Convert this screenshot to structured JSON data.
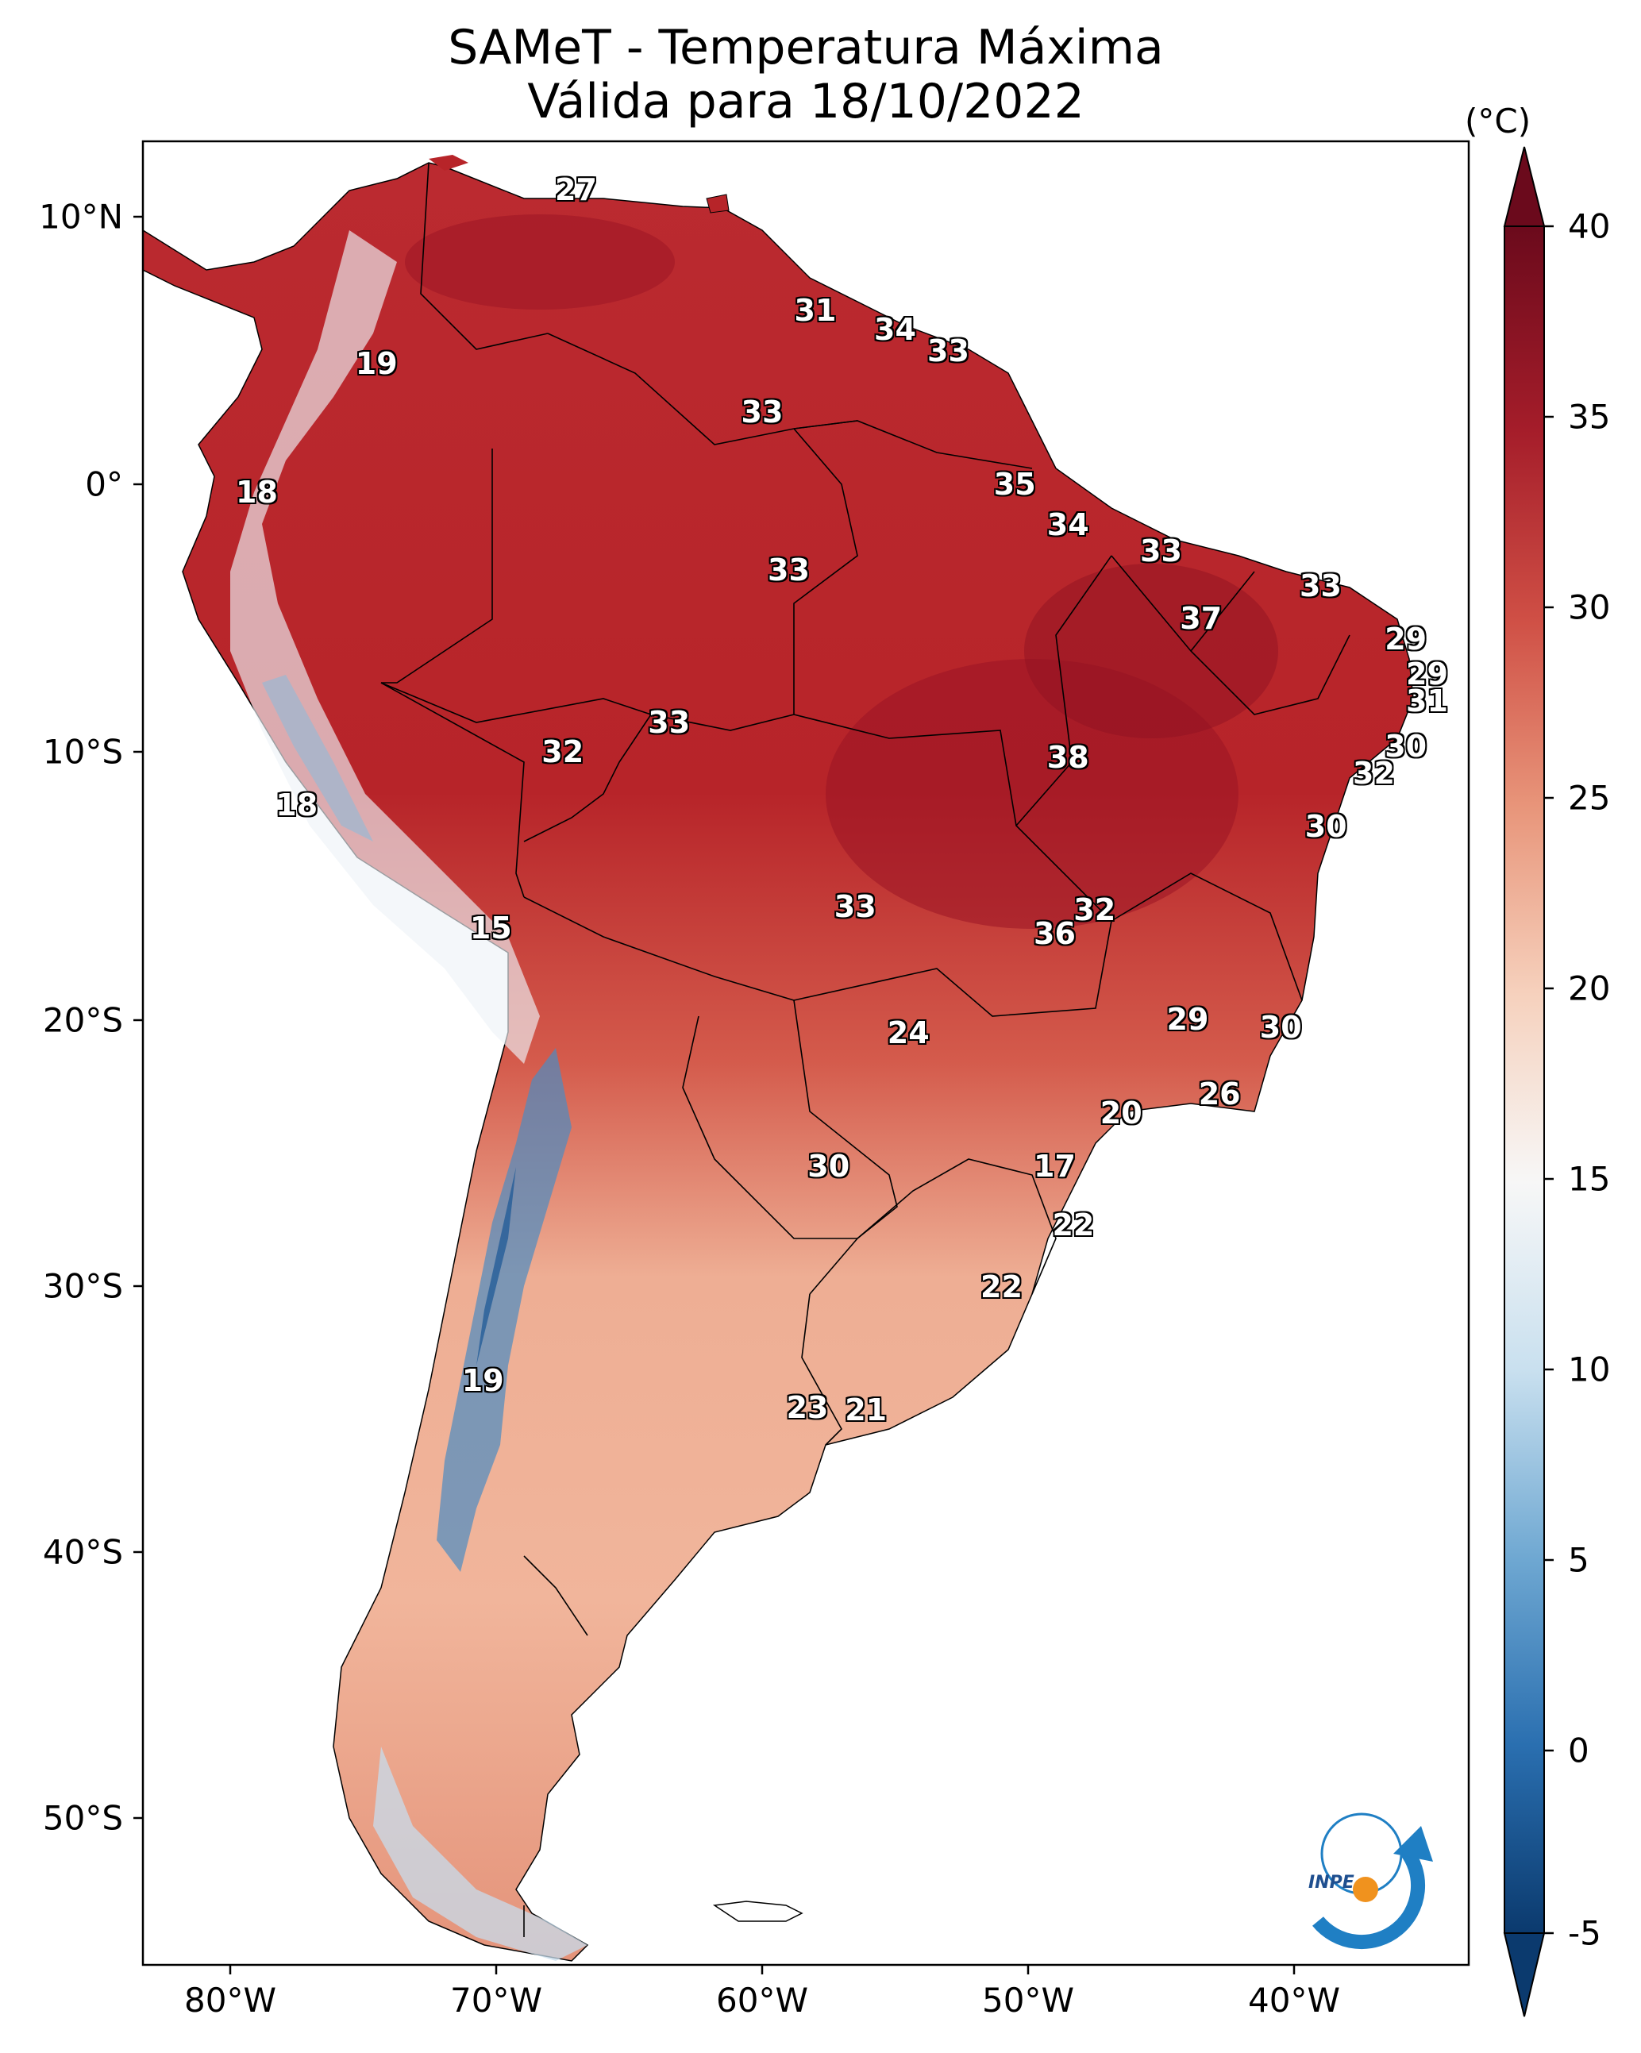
{
  "title": {
    "line1": "SAMeT - Temperatura Máxima",
    "line2": "Válida para 18/10/2022"
  },
  "axes": {
    "longitude_ticks": [
      "80°W",
      "70°W",
      "60°W",
      "50°W",
      "40°W"
    ],
    "latitude_ticks": [
      "10°N",
      "0°",
      "10°S",
      "20°S",
      "30°S",
      "40°S",
      "50°S"
    ]
  },
  "colorbar": {
    "unit": "(°C)",
    "ticks": [
      "40",
      "35",
      "30",
      "25",
      "20",
      "15",
      "10",
      "5",
      "0",
      "-5"
    ],
    "range": [
      -5,
      40
    ],
    "colors": [
      "#0b3a6e",
      "#2a6fb0",
      "#6fa8d2",
      "#c9e0ef",
      "#f7f7f7",
      "#f6d1bd",
      "#e8957a",
      "#cf4f45",
      "#a51d2a",
      "#6b0a1c"
    ]
  },
  "logo": {
    "text": "INPE",
    "colors": [
      "#1f7fc4",
      "#f0921e"
    ]
  },
  "temperature_labels": [
    {
      "value": "27",
      "lon": -67,
      "lat": 11
    },
    {
      "value": "31",
      "lon": -58,
      "lat": 6.5
    },
    {
      "value": "34",
      "lon": -55,
      "lat": 5.8
    },
    {
      "value": "33",
      "lon": -53,
      "lat": 5
    },
    {
      "value": "19",
      "lon": -74.5,
      "lat": 4.5
    },
    {
      "value": "33",
      "lon": -60,
      "lat": 2.7
    },
    {
      "value": "18",
      "lon": -79,
      "lat": -0.3
    },
    {
      "value": "35",
      "lon": -50.5,
      "lat": 0
    },
    {
      "value": "34",
      "lon": -48.5,
      "lat": -1.5
    },
    {
      "value": "33",
      "lon": -45,
      "lat": -2.5
    },
    {
      "value": "33",
      "lon": -59,
      "lat": -3.2
    },
    {
      "value": "33",
      "lon": -39,
      "lat": -3.8
    },
    {
      "value": "37",
      "lon": -43.5,
      "lat": -5
    },
    {
      "value": "29",
      "lon": -35.8,
      "lat": -5.8
    },
    {
      "value": "29",
      "lon": -35,
      "lat": -7.1
    },
    {
      "value": "31",
      "lon": -35,
      "lat": -8.1
    },
    {
      "value": "33",
      "lon": -63.5,
      "lat": -8.9
    },
    {
      "value": "32",
      "lon": -67.5,
      "lat": -10
    },
    {
      "value": "30",
      "lon": -35.8,
      "lat": -9.8
    },
    {
      "value": "38",
      "lon": -48.5,
      "lat": -10.2
    },
    {
      "value": "32",
      "lon": -37,
      "lat": -10.8
    },
    {
      "value": "18",
      "lon": -77.5,
      "lat": -12
    },
    {
      "value": "30",
      "lon": -38.8,
      "lat": -12.8
    },
    {
      "value": "33",
      "lon": -56.5,
      "lat": -15.8
    },
    {
      "value": "32",
      "lon": -47.5,
      "lat": -15.9
    },
    {
      "value": "36",
      "lon": -49,
      "lat": -16.8
    },
    {
      "value": "15",
      "lon": -70.2,
      "lat": -16.6
    },
    {
      "value": "24",
      "lon": -54.5,
      "lat": -20.5
    },
    {
      "value": "29",
      "lon": -44,
      "lat": -20
    },
    {
      "value": "30",
      "lon": -40.5,
      "lat": -20.3
    },
    {
      "value": "26",
      "lon": -42.8,
      "lat": -22.8
    },
    {
      "value": "20",
      "lon": -46.5,
      "lat": -23.5
    },
    {
      "value": "30",
      "lon": -57.5,
      "lat": -25.5
    },
    {
      "value": "17",
      "lon": -49,
      "lat": -25.5
    },
    {
      "value": "22",
      "lon": -48.3,
      "lat": -27.7
    },
    {
      "value": "22",
      "lon": -51,
      "lat": -30
    },
    {
      "value": "19",
      "lon": -70.5,
      "lat": -33.5
    },
    {
      "value": "23",
      "lon": -58.3,
      "lat": -34.5
    },
    {
      "value": "21",
      "lon": -56.1,
      "lat": -34.6
    }
  ]
}
